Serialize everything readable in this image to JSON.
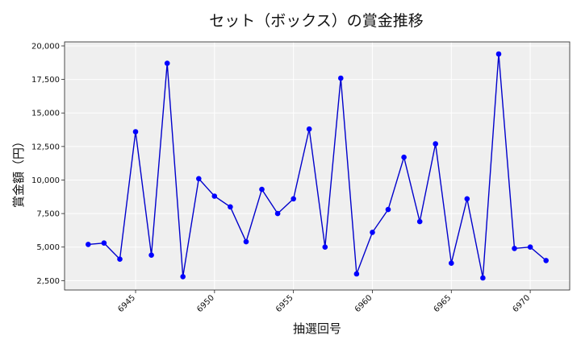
{
  "chart_data": {
    "type": "line",
    "title": "セット（ボックス）の賞金推移",
    "xlabel": "抽選回号",
    "ylabel": "賞金額（円）",
    "x": [
      6942,
      6943,
      6944,
      6945,
      6946,
      6947,
      6948,
      6949,
      6950,
      6951,
      6952,
      6953,
      6954,
      6955,
      6956,
      6957,
      6958,
      6959,
      6960,
      6961,
      6962,
      6963,
      6964,
      6965,
      6966,
      6967,
      6968,
      6969,
      6970,
      6971
    ],
    "series": [
      {
        "values": [
          5200,
          5300,
          4100,
          13600,
          4400,
          18700,
          2800,
          10100,
          8800,
          8000,
          5400,
          9300,
          7500,
          8600,
          13800,
          5000,
          17600,
          3000,
          6100,
          7800,
          11700,
          6900,
          12700,
          3800,
          8600,
          2700,
          19400,
          4900,
          5000,
          4000
        ]
      }
    ],
    "xlim": [
      6940.5,
      6972.5
    ],
    "ylim": [
      1800,
      20300
    ],
    "xticks": [
      6945,
      6950,
      6955,
      6960,
      6965,
      6970
    ],
    "xtick_labels": [
      "6945",
      "6950",
      "6955",
      "6960",
      "6965",
      "6970"
    ],
    "yticks": [
      2500,
      5000,
      7500,
      10000,
      12500,
      15000,
      17500,
      20000
    ],
    "ytick_labels": [
      "2,500",
      "5,000",
      "7,500",
      "10,000",
      "12,500",
      "15,000",
      "17,500",
      "20,000"
    ],
    "grid": true,
    "colors": {
      "line": "#0000cc",
      "marker": "#0000ff",
      "plot_bg": "#efefef",
      "grid": "#ffffff"
    }
  }
}
